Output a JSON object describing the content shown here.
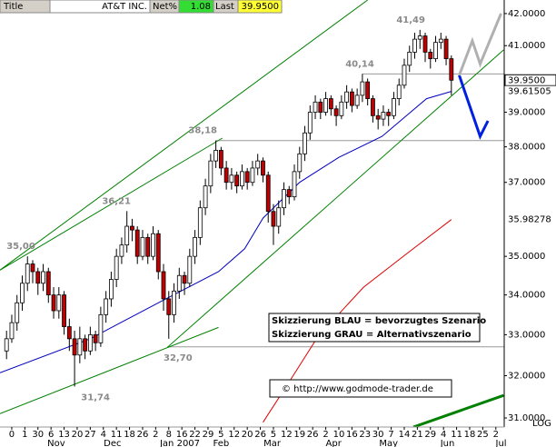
{
  "chart_data": {
    "type": "candlestick",
    "header": {
      "title_label": "Title",
      "symbol": "AT&T INC.",
      "net_label": "Net%",
      "net_value": 1.08,
      "last_label": "Last",
      "last_value": {
        "value": 39.95,
        "label": "39.9500"
      }
    },
    "log": true,
    "scale_label": "LOG",
    "xlim": [
      -0.9,
      37.64
    ],
    "ylim": [
      30.79,
      42.43
    ],
    "yticks": [
      {
        "value": 42,
        "label": "42.0000"
      },
      {
        "value": 41,
        "label": "41.0000"
      },
      {
        "value": 39,
        "label": "39.0000"
      },
      {
        "value": 38,
        "label": "38.0000"
      },
      {
        "value": 37,
        "label": "37.0000"
      },
      {
        "value": 35,
        "label": "35.0000"
      },
      {
        "value": 34,
        "label": "34.0000"
      },
      {
        "value": 33,
        "label": "33.0000"
      },
      {
        "value": 32,
        "label": "32.0000"
      },
      {
        "value": 31,
        "label": "31.0000"
      }
    ],
    "xticks": [
      0,
      1,
      {
        "value": 2,
        "label": "30"
      },
      {
        "value": 3,
        "label": "6"
      },
      {
        "value": 4,
        "label": "13"
      },
      {
        "value": 5,
        "label": "20"
      },
      {
        "value": 6,
        "label": "27"
      },
      {
        "value": 7,
        "label": "4"
      },
      {
        "value": 8,
        "label": "11"
      },
      {
        "value": 9,
        "label": "18"
      },
      {
        "value": 10,
        "label": "26"
      },
      {
        "value": 11,
        "label": "2"
      },
      {
        "value": 12,
        "label": "8"
      },
      {
        "value": 13,
        "label": "16"
      },
      {
        "value": 14,
        "label": "22"
      },
      {
        "value": 15,
        "label": "29"
      },
      {
        "value": 16,
        "label": "5"
      },
      {
        "value": 17,
        "label": "12"
      },
      {
        "value": 18,
        "label": "20"
      },
      {
        "value": 19,
        "label": "26"
      },
      {
        "value": 20,
        "label": "5"
      },
      {
        "value": 21,
        "label": "12"
      },
      {
        "value": 22,
        "label": "19"
      },
      {
        "value": 23,
        "label": "26"
      },
      {
        "value": 24,
        "label": "2"
      },
      {
        "value": 25,
        "label": "10"
      },
      {
        "value": 26,
        "label": "16"
      },
      {
        "value": 27,
        "label": "23"
      },
      {
        "value": 28,
        "label": "30"
      },
      {
        "value": 29,
        "label": "7"
      },
      {
        "value": 30,
        "label": "14"
      },
      {
        "value": 31,
        "label": "21"
      },
      {
        "value": 32,
        "label": "29"
      },
      {
        "value": 33,
        "label": "4"
      },
      {
        "value": 34,
        "label": "11"
      },
      {
        "value": 35,
        "label": "18"
      },
      {
        "value": 36,
        "label": "25"
      },
      {
        "value": 37,
        "label": "2"
      }
    ],
    "month_labels": [
      {
        "value": 3.4,
        "label": "Nov"
      },
      {
        "value": 7.7,
        "label": "Dec"
      },
      {
        "value": 12.85,
        "label": "Jan 2007"
      },
      {
        "value": 16.0,
        "label": "Feb"
      },
      {
        "value": 19.9,
        "label": "Mar"
      },
      {
        "value": 24.6,
        "label": "Apr"
      },
      {
        "value": 28.8,
        "label": "May"
      },
      {
        "value": 33.3,
        "label": "Jun"
      },
      {
        "value": 37.4,
        "label": "Jul"
      }
    ],
    "up_color": "#ffffff",
    "down_color": "#c00000",
    "x": [
      -0.4,
      0,
      0.4,
      0.8,
      1.2,
      1.6,
      2.0,
      2.4,
      2.8,
      3.2,
      3.6,
      4.0,
      4.4,
      4.8,
      5.2,
      5.6,
      6.0,
      6.4,
      6.8,
      7.2,
      7.6,
      8.0,
      8.4,
      8.8,
      9.2,
      9.6,
      10.0,
      10.4,
      10.8,
      11.2,
      11.6,
      12.0,
      12.4,
      12.8,
      13.2,
      13.6,
      14.0,
      14.4,
      14.8,
      15.2,
      15.6,
      16.0,
      16.4,
      16.8,
      17.2,
      17.6,
      18.0,
      18.4,
      18.8,
      19.2,
      19.6,
      20.0,
      20.4,
      20.8,
      21.2,
      21.6,
      22.0,
      22.4,
      22.8,
      23.2,
      23.6,
      24.0,
      24.4,
      24.8,
      25.2,
      25.6,
      26.0,
      26.4,
      26.8,
      27.2,
      27.6,
      28.0,
      28.4,
      28.8,
      29.2,
      29.6,
      30.0,
      30.4,
      30.8,
      31.2,
      31.6,
      32.0,
      32.4,
      32.8,
      33.2,
      33.6
    ],
    "ohlc": [
      [
        32.6,
        33.1,
        32.4,
        32.9
      ],
      [
        32.9,
        33.5,
        32.8,
        33.3
      ],
      [
        33.3,
        34.0,
        33.1,
        33.8
      ],
      [
        33.8,
        34.5,
        33.6,
        34.3
      ],
      [
        34.3,
        35.0,
        34.1,
        34.8
      ],
      [
        34.8,
        34.9,
        34.3,
        34.6
      ],
      [
        34.6,
        34.7,
        34.0,
        34.3
      ],
      [
        34.3,
        34.8,
        34.1,
        34.6
      ],
      [
        34.6,
        34.7,
        33.8,
        34.0
      ],
      [
        34.0,
        34.2,
        33.4,
        33.6
      ],
      [
        33.6,
        34.2,
        33.4,
        34.0
      ],
      [
        34.0,
        34.1,
        33.0,
        33.2
      ],
      [
        33.2,
        33.4,
        32.6,
        32.9
      ],
      [
        32.9,
        33.1,
        31.74,
        32.5
      ],
      [
        32.5,
        33.2,
        32.3,
        32.9
      ],
      [
        32.9,
        33.0,
        32.4,
        32.6
      ],
      [
        32.6,
        33.2,
        32.5,
        33.0
      ],
      [
        33.0,
        33.1,
        32.6,
        32.8
      ],
      [
        32.8,
        33.7,
        32.7,
        33.5
      ],
      [
        33.5,
        34.1,
        33.3,
        33.9
      ],
      [
        33.9,
        34.6,
        33.7,
        34.4
      ],
      [
        34.4,
        35.2,
        34.2,
        35.0
      ],
      [
        35.0,
        35.5,
        34.8,
        35.3
      ],
      [
        35.3,
        36.21,
        35.1,
        35.8
      ],
      [
        35.8,
        36.0,
        35.4,
        35.7
      ],
      [
        35.7,
        35.8,
        34.8,
        35.0
      ],
      [
        35.0,
        35.7,
        34.9,
        35.5
      ],
      [
        35.5,
        35.6,
        34.8,
        35.0
      ],
      [
        35.0,
        35.8,
        34.9,
        35.6
      ],
      [
        35.6,
        35.7,
        34.4,
        34.6
      ],
      [
        34.6,
        34.8,
        33.6,
        33.9
      ],
      [
        33.9,
        34.1,
        32.9,
        33.5
      ],
      [
        33.5,
        34.3,
        33.3,
        34.1
      ],
      [
        34.1,
        34.7,
        33.9,
        34.5
      ],
      [
        34.5,
        34.6,
        34.0,
        34.3
      ],
      [
        34.3,
        35.2,
        34.2,
        35.0
      ],
      [
        35.0,
        35.7,
        34.8,
        35.5
      ],
      [
        35.5,
        36.5,
        35.3,
        36.3
      ],
      [
        36.3,
        37.1,
        36.1,
        36.9
      ],
      [
        36.9,
        37.8,
        36.7,
        37.6
      ],
      [
        37.6,
        38.18,
        37.4,
        37.9
      ],
      [
        37.9,
        38.0,
        37.2,
        37.4
      ],
      [
        37.4,
        37.6,
        36.8,
        37.0
      ],
      [
        37.0,
        37.4,
        36.8,
        37.2
      ],
      [
        37.2,
        37.3,
        36.7,
        36.9
      ],
      [
        36.9,
        37.5,
        36.8,
        37.3
      ],
      [
        37.3,
        37.4,
        36.8,
        37.0
      ],
      [
        37.0,
        37.6,
        36.9,
        37.4
      ],
      [
        37.4,
        37.8,
        37.2,
        37.6
      ],
      [
        37.6,
        37.7,
        37.0,
        37.2
      ],
      [
        37.2,
        37.3,
        35.9,
        36.2
      ],
      [
        36.2,
        36.4,
        35.3,
        35.8
      ],
      [
        35.8,
        36.5,
        35.6,
        36.3
      ],
      [
        36.3,
        37.0,
        36.1,
        36.8
      ],
      [
        36.8,
        36.9,
        36.4,
        36.6
      ],
      [
        36.6,
        37.5,
        36.5,
        37.3
      ],
      [
        37.3,
        38.0,
        37.1,
        37.8
      ],
      [
        37.8,
        38.6,
        37.6,
        38.4
      ],
      [
        38.4,
        39.2,
        38.2,
        39.0
      ],
      [
        39.0,
        39.5,
        38.8,
        39.3
      ],
      [
        39.3,
        39.4,
        38.8,
        39.0
      ],
      [
        39.0,
        39.6,
        38.9,
        39.4
      ],
      [
        39.4,
        39.5,
        38.9,
        39.1
      ],
      [
        39.1,
        39.2,
        38.6,
        38.9
      ],
      [
        38.9,
        39.5,
        38.8,
        39.3
      ],
      [
        39.3,
        39.8,
        39.1,
        39.6
      ],
      [
        39.6,
        39.7,
        39.0,
        39.2
      ],
      [
        39.2,
        39.7,
        39.1,
        39.5
      ],
      [
        39.5,
        40.14,
        39.3,
        39.9
      ],
      [
        39.9,
        40.0,
        39.2,
        39.4
      ],
      [
        39.4,
        39.5,
        38.7,
        38.9
      ],
      [
        38.9,
        39.1,
        38.5,
        38.8
      ],
      [
        38.8,
        39.2,
        38.6,
        39.0
      ],
      [
        39.0,
        39.1,
        38.6,
        38.9
      ],
      [
        38.9,
        39.6,
        38.8,
        39.4
      ],
      [
        39.4,
        40.0,
        39.2,
        39.8
      ],
      [
        39.8,
        40.6,
        39.7,
        40.4
      ],
      [
        40.4,
        41.0,
        40.2,
        40.8
      ],
      [
        40.8,
        41.4,
        40.6,
        41.2
      ],
      [
        41.2,
        41.49,
        40.9,
        41.3
      ],
      [
        41.3,
        41.4,
        40.5,
        40.8
      ],
      [
        40.8,
        40.9,
        40.3,
        40.6
      ],
      [
        40.6,
        41.3,
        40.5,
        41.1
      ],
      [
        41.1,
        41.4,
        40.9,
        41.2
      ],
      [
        41.2,
        41.3,
        40.4,
        40.6
      ],
      [
        40.6,
        40.7,
        39.5,
        39.95
      ]
    ],
    "lines": [
      {
        "color": "#0000c0",
        "x": [
          -0.9,
          6,
          11.6,
          15.8,
          17.8,
          19.2,
          22,
          25,
          28.3,
          31.7,
          33.6
        ],
        "values": [
          32.07,
          32.9,
          33.87,
          34.6,
          35.2,
          36.02,
          37.0,
          37.7,
          38.3,
          39.4,
          39.615
        ]
      },
      {
        "color": "#e00000",
        "x": [
          19.2,
          21.3,
          23.4,
          26.9,
          30.3,
          33.6
        ],
        "values": [
          30.9,
          31.9,
          32.95,
          34.2,
          35.1,
          35.98
        ]
      }
    ],
    "trendlines": [
      {
        "color": "#008000",
        "x": [
          -0.9,
          27.2
        ],
        "values": [
          34.64,
          42.43
        ]
      },
      {
        "color": "#008000",
        "x": [
          -0.9,
          16.1
        ],
        "values": [
          34.64,
          38.25
        ]
      },
      {
        "color": "#008000",
        "x": [
          -0.9,
          15.8
        ],
        "values": [
          31.1,
          33.18
        ]
      },
      {
        "color": "#008000",
        "x": [
          11.9,
          37.6
        ],
        "values": [
          32.69,
          40.87
        ]
      },
      {
        "color": "#008000",
        "x": [
          30.7,
          37.6
        ],
        "values": [
          30.79,
          31.53
        ],
        "width": 3
      }
    ],
    "levels": [
      {
        "value": 40.14,
        "from": 26.8
      },
      {
        "value": 38.18,
        "from": 15.6
      },
      {
        "value": 32.7,
        "from": 12.0
      }
    ],
    "scenarios": [
      {
        "color": "#0020e0",
        "x": [
          34.2,
          34.5,
          35.8,
          36.4
        ],
        "values": [
          40.1,
          39.75,
          38.3,
          38.75
        ]
      },
      {
        "color": "#b0b0b0",
        "x": [
          34.2,
          35.2,
          35.8,
          37.4
        ],
        "values": [
          40.1,
          41.15,
          40.44,
          42.0
        ]
      }
    ],
    "annotations": [
      {
        "label": "35,00",
        "value": 35.0,
        "x": 0.7,
        "position": "above"
      },
      {
        "label": "36,21",
        "value": 36.21,
        "x": 8.0,
        "position": "above"
      },
      {
        "label": "38,18",
        "value": 38.18,
        "x": 14.6,
        "position": "above"
      },
      {
        "label": "40,14",
        "value": 40.14,
        "x": 26.6,
        "position": "above"
      },
      {
        "label": "41,49",
        "value": 41.49,
        "x": 30.5,
        "position": "above"
      },
      {
        "label": "32,70",
        "value": 32.7,
        "x": 12.7,
        "position": "below"
      },
      {
        "label": "31,74",
        "value": 31.74,
        "x": 6.4,
        "position": "below"
      }
    ],
    "last_values": [
      {
        "value": 39.95,
        "label": "39.9500",
        "color": "#000000",
        "boxed": true
      },
      {
        "value": 39.61505,
        "label": "39.61505",
        "color": "#0000c0"
      },
      {
        "value": 35.98278,
        "label": "35.98278",
        "color": "#e00000"
      }
    ],
    "notes": [
      "Skizzierung BLAU = bevorzugtes Szenario",
      "Skizzierung GRAU = Alternativszenario"
    ],
    "source": "© http://www.godmode-trader.de"
  }
}
